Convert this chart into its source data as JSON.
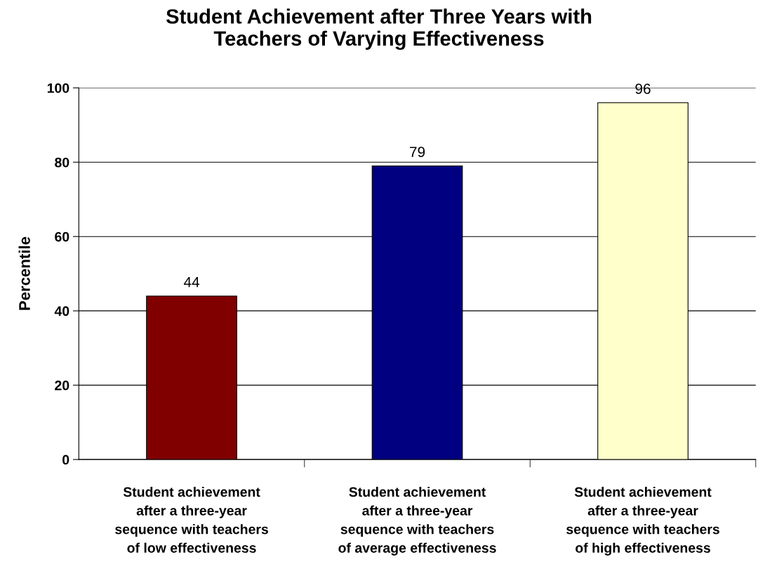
{
  "chart_data": {
    "type": "bar",
    "title": "Student Achievement after Three Years with\nTeachers of Varying Effectiveness",
    "ylabel": "Percentile",
    "categories": [
      "Student achievement\nafter a three-year\nsequence with teachers\nof low effectiveness",
      "Student achievement\nafter a three-year\nsequence with teachers\nof average effectiveness",
      "Student achievement\nafter a three-year\nsequence with teachers\nof high effectiveness"
    ],
    "values": [
      44,
      79,
      96
    ],
    "colors": [
      "#800000",
      "#000080",
      "#ffffcc"
    ],
    "ylim": [
      0,
      100
    ],
    "yticks": [
      0,
      20,
      40,
      60,
      80,
      100
    ],
    "grid": "y",
    "data_labels": true
  }
}
